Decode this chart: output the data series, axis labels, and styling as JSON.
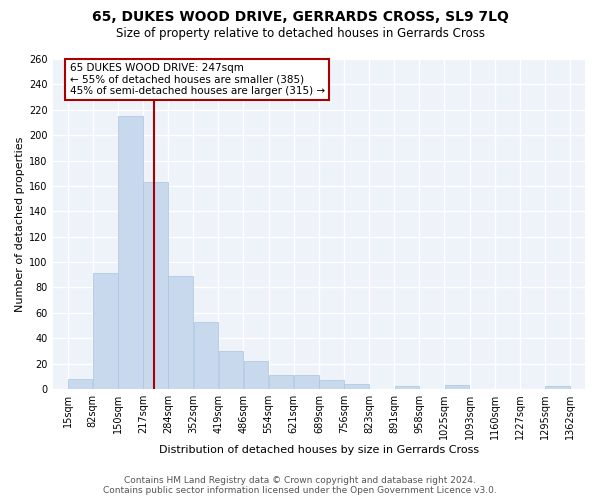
{
  "title": "65, DUKES WOOD DRIVE, GERRARDS CROSS, SL9 7LQ",
  "subtitle": "Size of property relative to detached houses in Gerrards Cross",
  "xlabel": "Distribution of detached houses by size in Gerrards Cross",
  "ylabel": "Number of detached properties",
  "bar_color": "#c8d9ee",
  "bar_edge_color": "#a8c4e0",
  "vline_x": 247,
  "vline_color": "#aa0000",
  "annotation_text": "65 DUKES WOOD DRIVE: 247sqm\n← 55% of detached houses are smaller (385)\n45% of semi-detached houses are larger (315) →",
  "annotation_box_color": "white",
  "annotation_box_edge": "#aa0000",
  "bins": [
    15,
    82,
    150,
    217,
    284,
    352,
    419,
    486,
    554,
    621,
    689,
    756,
    823,
    891,
    958,
    1025,
    1093,
    1160,
    1227,
    1295,
    1362
  ],
  "counts": [
    8,
    91,
    215,
    163,
    89,
    53,
    30,
    22,
    11,
    11,
    7,
    4,
    0,
    2,
    0,
    3,
    0,
    0,
    0,
    2
  ],
  "tick_labels": [
    "15sqm",
    "82sqm",
    "150sqm",
    "217sqm",
    "284sqm",
    "352sqm",
    "419sqm",
    "486sqm",
    "554sqm",
    "621sqm",
    "689sqm",
    "756sqm",
    "823sqm",
    "891sqm",
    "958sqm",
    "1025sqm",
    "1093sqm",
    "1160sqm",
    "1227sqm",
    "1295sqm",
    "1362sqm"
  ],
  "ylim": [
    0,
    260
  ],
  "yticks": [
    0,
    20,
    40,
    60,
    80,
    100,
    120,
    140,
    160,
    180,
    200,
    220,
    240,
    260
  ],
  "footer_line1": "Contains HM Land Registry data © Crown copyright and database right 2024.",
  "footer_line2": "Contains public sector information licensed under the Open Government Licence v3.0.",
  "bg_color": "#eef2f9",
  "grid_color": "white",
  "title_fontsize": 10,
  "subtitle_fontsize": 8.5,
  "axis_label_fontsize": 8,
  "tick_fontsize": 7,
  "footer_fontsize": 6.5,
  "annotation_fontsize": 7.5,
  "figwidth": 6.0,
  "figheight": 5.0,
  "dpi": 100
}
